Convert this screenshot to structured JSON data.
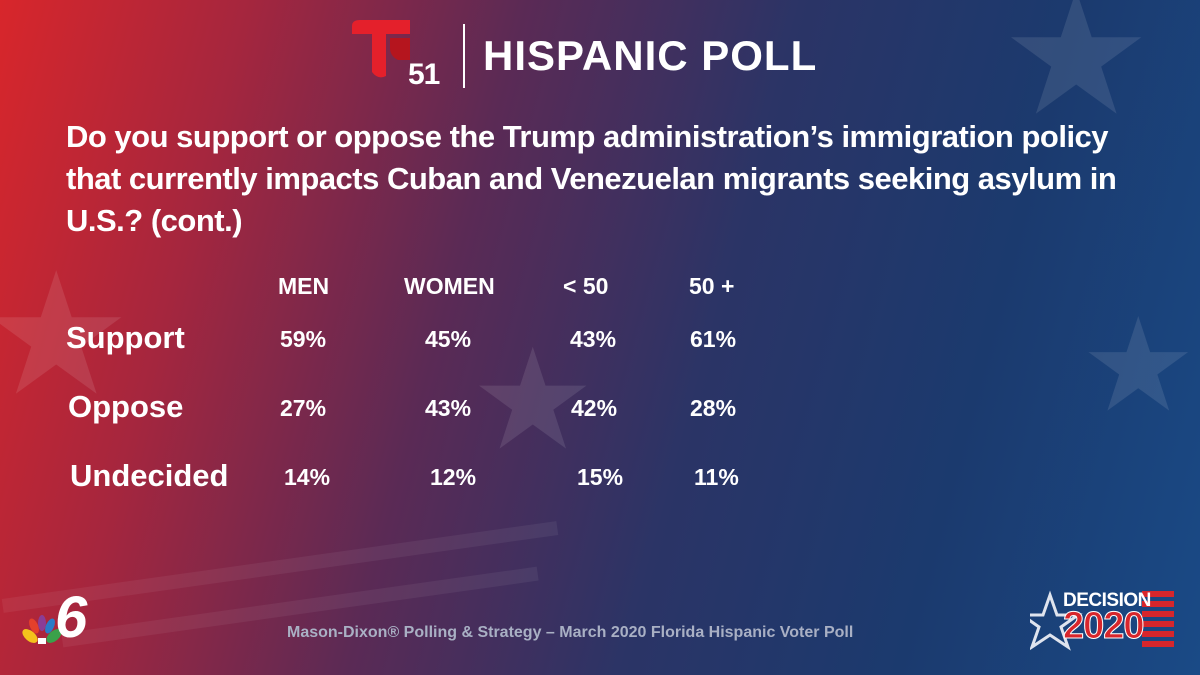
{
  "header": {
    "logo_number": "51",
    "title": "HISPANIC POLL"
  },
  "question": "Do you support or oppose the Trump administration’s immigration policy that currently impacts Cuban and Venezuelan migrants seeking asylum in U.S.?  (cont.)",
  "table": {
    "columns": [
      "MEN",
      "WOMEN",
      "< 50",
      "50 +"
    ],
    "rows": [
      {
        "label": "Support",
        "values": [
          "59%",
          "45%",
          "43%",
          "61%"
        ]
      },
      {
        "label": "Oppose",
        "values": [
          "27%",
          "43%",
          "42%",
          "28%"
        ]
      },
      {
        "label": "Undecided",
        "values": [
          "14%",
          "12%",
          "15%",
          "11%"
        ]
      }
    ]
  },
  "footer": {
    "source": "Mason-Dixon® Polling & Strategy – March 2020 Florida Hispanic Voter Poll",
    "station_logo": "6",
    "decision_label": "DECISION",
    "decision_year": "2020"
  },
  "colors": {
    "telemundo_red": "#e4202b",
    "background_red": "#d8262b",
    "background_blue": "#1b3a6e",
    "source_gray": "#a9b0c4"
  },
  "icons": [
    "telemundo-logo-icon",
    "nbc-peacock-icon",
    "decision-star-icon",
    "flag-stripes-icon"
  ]
}
